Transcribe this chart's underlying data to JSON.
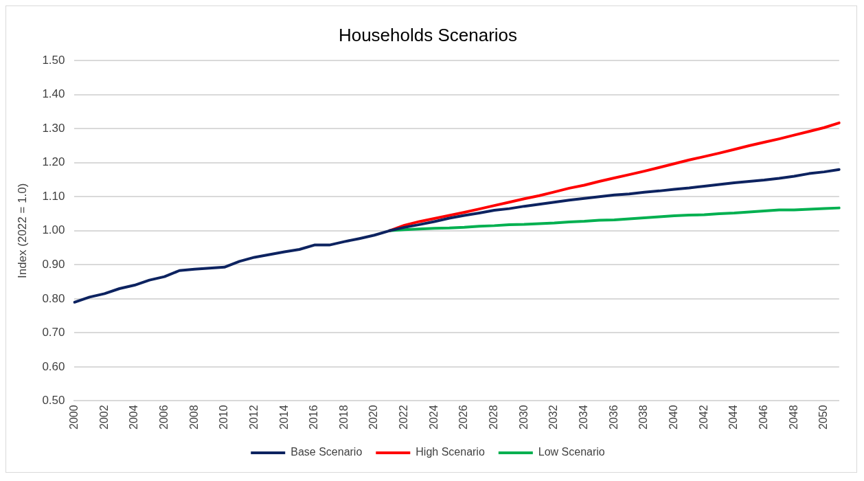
{
  "chart_data": {
    "type": "line",
    "title": "Households Scenarios",
    "ylabel": "Index (2022 = 1.0)",
    "categories": [
      "2000",
      null,
      "2002",
      null,
      "2004",
      null,
      "2006",
      null,
      "2008",
      null,
      "2010",
      null,
      "2012",
      null,
      "2014",
      null,
      "2016",
      null,
      "2018",
      null,
      "2020",
      null,
      "2022",
      null,
      "2024",
      null,
      "2026",
      null,
      "2028",
      null,
      "2030",
      null,
      "2032",
      null,
      "2034",
      null,
      "2036",
      null,
      "2038",
      null,
      "2040",
      null,
      "2042",
      null,
      "2044",
      null,
      "2046",
      null,
      "2048",
      null,
      "2050",
      null
    ],
    "series": [
      {
        "name": "Base Scenario",
        "color": "#0d2360",
        "values": [
          0.79,
          0.805,
          0.815,
          0.83,
          0.84,
          0.855,
          0.865,
          0.883,
          0.887,
          0.89,
          0.893,
          0.91,
          0.922,
          0.93,
          0.938,
          0.945,
          0.958,
          0.958,
          0.968,
          0.977,
          0.987,
          1.0,
          1.01,
          1.018,
          1.027,
          1.037,
          1.045,
          1.052,
          1.06,
          1.065,
          1.072,
          1.078,
          1.084,
          1.09,
          1.095,
          1.1,
          1.105,
          1.108,
          1.113,
          1.117,
          1.122,
          1.126,
          1.131,
          1.136,
          1.141,
          1.145,
          1.149,
          1.154,
          1.16,
          1.168,
          1.173,
          1.18
        ]
      },
      {
        "name": "High Scenario",
        "color": "#ff0000",
        "values": [
          null,
          null,
          null,
          null,
          null,
          null,
          null,
          null,
          null,
          null,
          null,
          null,
          null,
          null,
          null,
          null,
          null,
          null,
          null,
          null,
          null,
          1.0,
          1.016,
          1.027,
          1.036,
          1.045,
          1.054,
          1.064,
          1.074,
          1.084,
          1.094,
          1.103,
          1.114,
          1.125,
          1.134,
          1.145,
          1.155,
          1.165,
          1.175,
          1.186,
          1.197,
          1.208,
          1.218,
          1.228,
          1.239,
          1.25,
          1.26,
          1.27,
          1.281,
          1.292,
          1.303,
          1.317
        ]
      },
      {
        "name": "Low Scenario",
        "color": "#00b050",
        "values": [
          null,
          null,
          null,
          null,
          null,
          null,
          null,
          null,
          null,
          null,
          null,
          null,
          null,
          null,
          null,
          null,
          null,
          null,
          null,
          null,
          null,
          1.0,
          1.003,
          1.005,
          1.007,
          1.008,
          1.01,
          1.013,
          1.015,
          1.018,
          1.019,
          1.021,
          1.023,
          1.026,
          1.028,
          1.031,
          1.032,
          1.035,
          1.038,
          1.041,
          1.044,
          1.046,
          1.047,
          1.05,
          1.052,
          1.055,
          1.058,
          1.061,
          1.061,
          1.063,
          1.065,
          1.067
        ]
      }
    ],
    "ylim": [
      0.5,
      1.5
    ],
    "yticks": [
      {
        "value": 0.5,
        "label": "0.50"
      },
      {
        "value": 0.6,
        "label": "0.60"
      },
      {
        "value": 0.7,
        "label": "0.70"
      },
      {
        "value": 0.8,
        "label": "0.80"
      },
      {
        "value": 0.9,
        "label": "0.90"
      },
      {
        "value": 1.0,
        "label": "1.00"
      },
      {
        "value": 1.1,
        "label": "1.10"
      },
      {
        "value": 1.2,
        "label": "1.20"
      },
      {
        "value": 1.3,
        "label": "1.30"
      },
      {
        "value": 1.4,
        "label": "1.40"
      },
      {
        "value": 1.5,
        "label": "1.50"
      }
    ],
    "grid": "y",
    "legend": "bottom",
    "marker": "none",
    "line_style": "solid"
  }
}
